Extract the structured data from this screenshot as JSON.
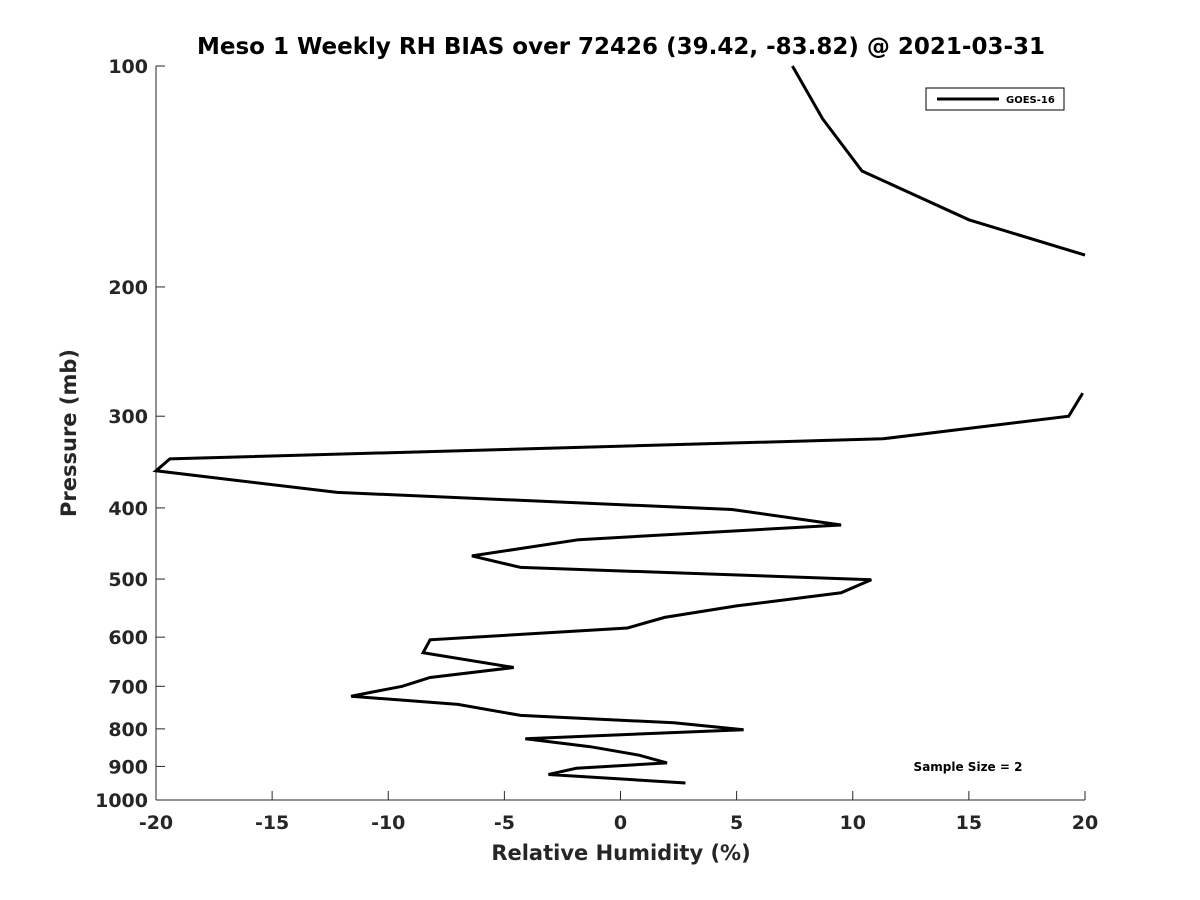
{
  "chart_data": {
    "type": "line",
    "title": "Meso 1 Weekly RH BIAS over 72426 (39.42, -83.82) @ 2021-03-31",
    "xlabel": "Relative Humidity (%)",
    "ylabel": "Pressure (mb)",
    "xlim": [
      -20,
      20
    ],
    "ylim": [
      100,
      1000
    ],
    "y_scale": "log",
    "y_reversed": true,
    "x_ticks": [
      -20,
      -15,
      -10,
      -5,
      0,
      5,
      10,
      15,
      20
    ],
    "y_ticks": [
      100,
      200,
      300,
      400,
      500,
      600,
      700,
      800,
      900,
      1000
    ],
    "grid": false,
    "legend_position": "top-right",
    "annotation": "Sample Size = 2",
    "series": [
      {
        "name": "GOES-16",
        "color": "#000000",
        "segments": [
          {
            "rh": [
              7.4,
              8.7,
              10.4,
              15.0,
              20.0
            ],
            "pressure": [
              100,
              118,
              139,
              162,
              181
            ]
          },
          {
            "rh": [
              19.9,
              19.3,
              11.3,
              -19.4,
              -20.0,
              -12.2,
              4.8,
              9.5,
              -1.8,
              -6.4,
              -4.3,
              10.8,
              9.5,
              5.0,
              1.9,
              0.3,
              -8.2,
              -8.5,
              -4.6,
              -8.2,
              -9.4,
              -11.6,
              -7.0,
              -4.3,
              2.3,
              5.3,
              -4.1,
              -1.3,
              0.8,
              2.0,
              -1.9,
              -3.1,
              2.8
            ],
            "pressure": [
              279,
              300,
              322,
              343,
              356,
              381,
              402,
              422,
              442,
              465,
              482,
              501,
              522,
              544,
              564,
              583,
              605,
              630,
              660,
              681,
              700,
              722,
              741,
              767,
              785,
              802,
              825,
              846,
              869,
              890,
              905,
              923,
              948
            ]
          }
        ]
      }
    ]
  }
}
